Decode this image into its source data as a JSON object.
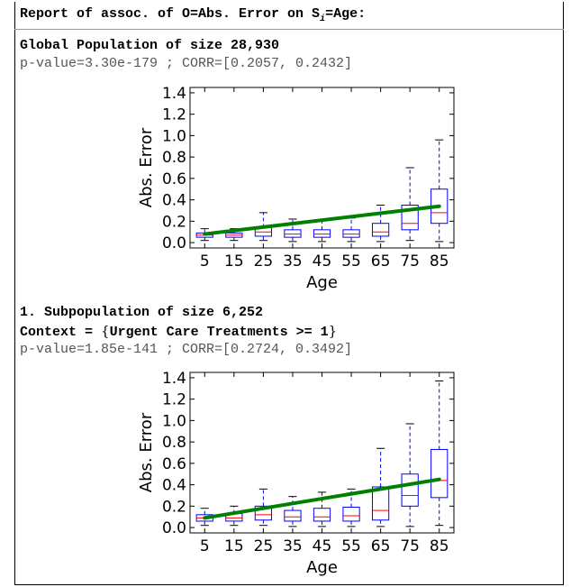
{
  "report": {
    "title_prefix": "Report of assoc. of O=Abs. Error on S",
    "title_sub": "i",
    "title_suffix": "=Age:",
    "global_title": "Global Population of size 28,930",
    "global_stats": "p-value=3.30e-179 ; CORR=[0.2057, 0.2432]",
    "sub1_title": "1. Subpopulation of size 6,252",
    "sub1_context_prefix": "Context = ",
    "sub1_context_open": "{",
    "sub1_context_body": "Urgent Care Treatments >= 1",
    "sub1_context_close": "}",
    "sub1_stats": "p-value=1.85e-141 ; CORR=[0.2724, 0.3492]"
  },
  "chart_data": [
    {
      "type": "box",
      "xlabel": "Age",
      "ylabel": "Abs. Error",
      "categories": [
        "5",
        "15",
        "25",
        "35",
        "45",
        "55",
        "65",
        "75",
        "85"
      ],
      "yticks": [
        "0.0",
        "0.2",
        "0.4",
        "0.6",
        "0.8",
        "1.0",
        "1.2",
        "1.4"
      ],
      "ylim": [
        -0.05,
        1.45
      ],
      "grid": false,
      "boxes": [
        {
          "whislo": 0.02,
          "q1": 0.05,
          "med": 0.07,
          "q3": 0.09,
          "whishi": 0.13
        },
        {
          "whislo": 0.02,
          "q1": 0.05,
          "med": 0.07,
          "q3": 0.09,
          "whishi": 0.13
        },
        {
          "whislo": 0.02,
          "q1": 0.06,
          "med": 0.1,
          "q3": 0.14,
          "whishi": 0.28
        },
        {
          "whislo": 0.01,
          "q1": 0.05,
          "med": 0.08,
          "q3": 0.12,
          "whishi": 0.22
        },
        {
          "whislo": 0.01,
          "q1": 0.05,
          "med": 0.08,
          "q3": 0.12,
          "whishi": 0.21
        },
        {
          "whislo": 0.01,
          "q1": 0.05,
          "med": 0.08,
          "q3": 0.12,
          "whishi": 0.23
        },
        {
          "whislo": 0.01,
          "q1": 0.06,
          "med": 0.1,
          "q3": 0.18,
          "whishi": 0.35
        },
        {
          "whislo": 0.02,
          "q1": 0.12,
          "med": 0.18,
          "q3": 0.35,
          "whishi": 0.7
        },
        {
          "whislo": 0.01,
          "q1": 0.18,
          "med": 0.28,
          "q3": 0.5,
          "whishi": 0.96
        }
      ],
      "trend": {
        "x_start": "5",
        "y_start": 0.08,
        "x_end": "85",
        "y_end": 0.34
      }
    },
    {
      "type": "box",
      "xlabel": "Age",
      "ylabel": "Abs. Error",
      "categories": [
        "5",
        "15",
        "25",
        "35",
        "45",
        "55",
        "65",
        "75",
        "85"
      ],
      "yticks": [
        "0.0",
        "0.2",
        "0.4",
        "0.6",
        "0.8",
        "1.0",
        "1.2",
        "1.4"
      ],
      "ylim": [
        -0.05,
        1.45
      ],
      "grid": false,
      "boxes": [
        {
          "whislo": 0.02,
          "q1": 0.06,
          "med": 0.09,
          "q3": 0.12,
          "whishi": 0.18
        },
        {
          "whislo": 0.02,
          "q1": 0.06,
          "med": 0.09,
          "q3": 0.13,
          "whishi": 0.2
        },
        {
          "whislo": 0.02,
          "q1": 0.07,
          "med": 0.12,
          "q3": 0.2,
          "whishi": 0.36
        },
        {
          "whislo": 0.01,
          "q1": 0.06,
          "med": 0.1,
          "q3": 0.16,
          "whishi": 0.29
        },
        {
          "whislo": 0.01,
          "q1": 0.06,
          "med": 0.1,
          "q3": 0.18,
          "whishi": 0.33
        },
        {
          "whislo": 0.01,
          "q1": 0.06,
          "med": 0.11,
          "q3": 0.19,
          "whishi": 0.36
        },
        {
          "whislo": 0.01,
          "q1": 0.07,
          "med": 0.16,
          "q3": 0.38,
          "whishi": 0.74
        },
        {
          "whislo": 0.01,
          "q1": 0.2,
          "med": 0.3,
          "q3": 0.5,
          "whishi": 0.97
        },
        {
          "whislo": 0.02,
          "q1": 0.28,
          "med": 0.44,
          "q3": 0.73,
          "whishi": 1.37
        }
      ],
      "trend": {
        "x_start": "5",
        "y_start": 0.09,
        "x_end": "85",
        "y_end": 0.45
      }
    }
  ],
  "colors": {
    "box": "#0000ff",
    "median": "#ff0000",
    "whisker": "#0000ff",
    "trend": "#008000"
  }
}
